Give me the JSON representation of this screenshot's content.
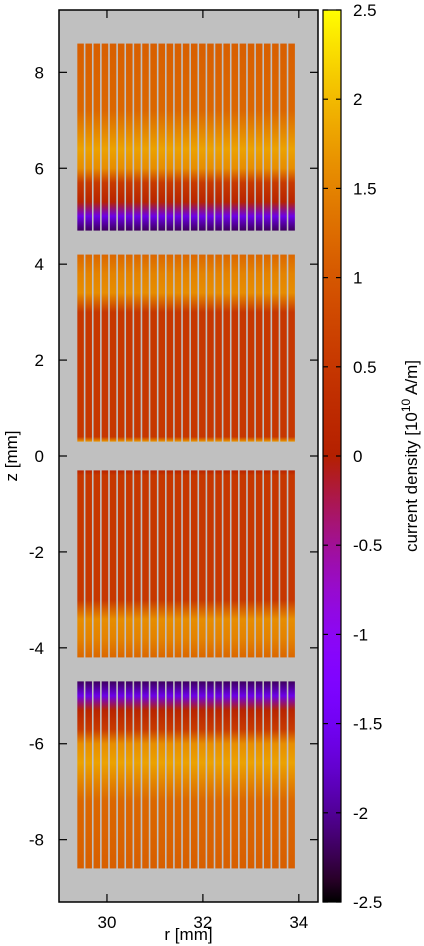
{
  "chart_data": {
    "type": "heatmap",
    "xlabel": "r [mm]",
    "ylabel": "z [mm]",
    "xlim": [
      29,
      34.4
    ],
    "ylim": [
      -9.3,
      9.3
    ],
    "x_ticks": [
      30,
      32,
      34
    ],
    "y_ticks": [
      -8,
      -6,
      -4,
      -2,
      0,
      2,
      4,
      6,
      8
    ],
    "background_color": "#c0c0c0",
    "colorbar": {
      "label_prefix": "current density [10",
      "label_exponent": "10",
      "label_suffix": " A/m]",
      "range": [
        -2.5,
        2.5
      ],
      "ticks": [
        -2.5,
        -2,
        -1.5,
        -1,
        -0.5,
        0,
        0.5,
        1,
        1.5,
        2,
        2.5
      ],
      "colormap": "gnuplot-pm3d"
    },
    "strands": {
      "count": 27,
      "r_start": 29.45,
      "r_end": 33.85,
      "width_mm": 0.09
    },
    "coils": [
      {
        "name": "",
        "z_range": [
          4.7,
          8.6
        ],
        "interior_value": 0.5,
        "end_value": 1.1,
        "edge_value": -2.2,
        "edge_side": "bottom",
        "profile": [
          [
            4.7,
            -2.2
          ],
          [
            5.0,
            -1.6
          ],
          [
            5.3,
            0.1
          ],
          [
            5.7,
            0.55
          ],
          [
            6.0,
            1.6
          ],
          [
            6.4,
            1.8
          ],
          [
            7.2,
            1.2
          ],
          [
            8.6,
            1.1
          ]
        ]
      },
      {
        "name": "",
        "z_range": [
          0.3,
          4.2
        ],
        "interior_value": 0.5,
        "end_value": 1.1,
        "edge_value": 1.6,
        "edge_side": "top",
        "profile": [
          [
            0.3,
            1.7
          ],
          [
            0.4,
            0.5
          ],
          [
            3.0,
            0.5
          ],
          [
            3.4,
            1.6
          ],
          [
            3.8,
            1.5
          ],
          [
            4.2,
            1.2
          ]
        ]
      },
      {
        "name": "",
        "z_range": [
          -4.2,
          -0.3
        ],
        "interior_value": 0.5,
        "end_value": 1.1,
        "edge_value": 1.6,
        "edge_side": "bottom",
        "profile": [
          [
            -4.2,
            1.2
          ],
          [
            -3.8,
            1.5
          ],
          [
            -3.4,
            1.6
          ],
          [
            -3.0,
            0.5
          ],
          [
            -0.4,
            0.5
          ],
          [
            -0.3,
            0.1
          ]
        ]
      },
      {
        "name": "",
        "z_range": [
          -8.6,
          -4.7
        ],
        "interior_value": 0.5,
        "end_value": 1.1,
        "edge_value": -2.2,
        "edge_side": "top",
        "profile": [
          [
            -8.6,
            1.1
          ],
          [
            -7.2,
            1.2
          ],
          [
            -6.4,
            1.8
          ],
          [
            -6.0,
            1.6
          ],
          [
            -5.7,
            0.55
          ],
          [
            -5.3,
            0.1
          ],
          [
            -5.0,
            -1.6
          ],
          [
            -4.7,
            -2.2
          ]
        ]
      }
    ]
  }
}
